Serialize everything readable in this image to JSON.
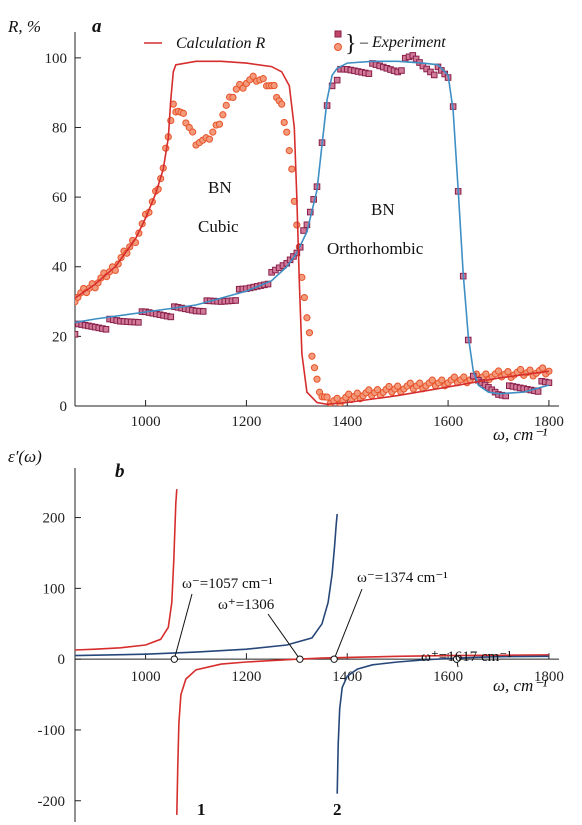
{
  "chart_data": [
    {
      "panel": "a",
      "type": "line",
      "ylabel": "R, %",
      "xlabel": "ω, cm⁻¹",
      "xlim": [
        860,
        1820
      ],
      "ylim": [
        0,
        108
      ],
      "xticks": [
        1000,
        1200,
        1400,
        1600,
        1800
      ],
      "yticks": [
        0,
        20,
        40,
        60,
        80,
        100
      ],
      "ytick_labels": [
        "0",
        "20",
        "40",
        "60",
        "80",
        "100"
      ],
      "legend": {
        "calc_label": "Calculation R",
        "exp_label": "– Experiment",
        "brace": "}",
        "placement": "top"
      },
      "annotations": {
        "cubic_1": "BN",
        "cubic_2": "Cubic",
        "ortho_1": "BN",
        "ortho_2": "Orthorhombic"
      },
      "series": [
        {
          "kind": "calculation-cubic",
          "color": "#d62d2d",
          "x": [
            860,
            900,
            940,
            980,
            1000,
            1020,
            1035,
            1045,
            1050,
            1055,
            1060,
            1100,
            1150,
            1200,
            1250,
            1270,
            1285,
            1295,
            1300,
            1305,
            1310,
            1320,
            1340,
            1360,
            1400,
            1500,
            1600,
            1700,
            1800
          ],
          "y": [
            31,
            35,
            40,
            48,
            54,
            61,
            68,
            77,
            88,
            96,
            98,
            99,
            99,
            98.5,
            97.5,
            96,
            92,
            80,
            60,
            35,
            15,
            4,
            1,
            0.5,
            1,
            3,
            5.5,
            8,
            10
          ]
        },
        {
          "kind": "experiment-cubic",
          "color": "#e8542a",
          "x": [
            860,
            900,
            940,
            980,
            1000,
            1020,
            1035,
            1045,
            1055,
            1065,
            1080,
            1100,
            1120,
            1140,
            1160,
            1180,
            1200,
            1220,
            1240,
            1255,
            1270,
            1280,
            1290,
            1300,
            1310,
            1320,
            1330,
            1340,
            1350,
            1360,
            1380,
            1420,
            1460,
            1500,
            1550,
            1600,
            1650,
            1700,
            1750,
            1800
          ],
          "y": [
            31,
            35,
            40,
            48,
            54,
            61,
            68,
            78,
            86,
            85,
            82,
            76,
            76,
            80,
            86,
            91,
            93,
            94,
            93,
            91,
            86,
            79,
            67,
            52,
            38,
            25,
            15,
            7,
            3,
            1.5,
            1.5,
            3,
            4,
            5,
            6,
            7,
            8,
            9,
            9.5,
            10
          ]
        },
        {
          "kind": "calculation-orthorhombic",
          "color": "#3d8fc4",
          "x": [
            860,
            900,
            1000,
            1100,
            1200,
            1250,
            1280,
            1300,
            1320,
            1340,
            1350,
            1360,
            1370,
            1380,
            1400,
            1450,
            1500,
            1550,
            1580,
            1600,
            1610,
            1620,
            1630,
            1640,
            1650,
            1660,
            1680,
            1700,
            1750,
            1800
          ],
          "y": [
            24,
            25,
            27,
            29,
            33,
            36,
            40,
            44,
            50,
            62,
            75,
            88,
            95,
            97,
            98.5,
            99,
            99,
            98.5,
            98,
            95,
            85,
            62,
            38,
            20,
            10,
            6,
            4,
            3.5,
            4,
            6
          ]
        },
        {
          "kind": "experiment-orthorhombic",
          "color": "#8a1f4a",
          "x": [
            860,
            900,
            950,
            1000,
            1050,
            1100,
            1150,
            1200,
            1250,
            1280,
            1300,
            1320,
            1340,
            1350,
            1360,
            1370,
            1380,
            1400,
            1450,
            1500,
            1530,
            1550,
            1580,
            1600,
            1610,
            1620,
            1630,
            1640,
            1650,
            1660,
            1680,
            1700,
            1750,
            1800
          ],
          "y": [
            22,
            23,
            24,
            26,
            27,
            28,
            30,
            33,
            37,
            41,
            45,
            51,
            63,
            76,
            87,
            93,
            95,
            96,
            97,
            97,
            100,
            98,
            96,
            94,
            86,
            62,
            38,
            20,
            10,
            6,
            5,
            4,
            5,
            6
          ]
        }
      ]
    },
    {
      "panel": "b",
      "type": "line",
      "ylabel": "ε′(ω)",
      "xlabel": "ω, cm⁻¹",
      "xlim": [
        860,
        1820
      ],
      "ylim": [
        -230,
        270
      ],
      "xticks": [
        1000,
        1200,
        1400,
        1600,
        1800
      ],
      "xtick_labels": [
        "1000",
        "1200",
        "1400",
        "1600",
        "1800"
      ],
      "yticks": [
        -200,
        -100,
        0,
        100,
        200
      ],
      "ytick_labels": [
        "-200",
        "-100",
        "0",
        "100",
        "200"
      ],
      "series": [
        {
          "name": "1",
          "color": "#d62d2d",
          "segments": [
            {
              "x": [
                860,
                900,
                950,
                1000,
                1030,
                1045,
                1052,
                1056,
                1058,
                1060,
                1062
              ],
              "y": [
                13,
                14,
                16,
                20,
                28,
                45,
                80,
                140,
                180,
                220,
                240
              ]
            },
            {
              "x": [
                1062,
                1064,
                1066,
                1070,
                1080,
                1100,
                1150,
                1200,
                1250,
                1300,
                1350,
                1400,
                1500,
                1600,
                1700,
                1800
              ],
              "y": [
                -220,
                -150,
                -90,
                -50,
                -28,
                -15,
                -7,
                -4,
                -2,
                0,
                1.5,
                2.5,
                4,
                5,
                5.5,
                6
              ]
            }
          ]
        },
        {
          "name": "2",
          "color": "#27477a",
          "segments": [
            {
              "x": [
                860,
                1000,
                1100,
                1200,
                1280,
                1330,
                1350,
                1362,
                1370,
                1375,
                1378,
                1380
              ],
              "y": [
                5,
                7,
                10,
                14,
                20,
                30,
                50,
                80,
                120,
                160,
                190,
                205
              ]
            },
            {
              "x": [
                1380,
                1382,
                1385,
                1390,
                1400,
                1420,
                1450,
                1500,
                1550,
                1600,
                1650,
                1700,
                1800
              ],
              "y": [
                -190,
                -120,
                -70,
                -40,
                -24,
                -14,
                -8,
                -4,
                -1,
                1,
                2.5,
                3.5,
                4
              ]
            }
          ]
        }
      ],
      "points": [
        {
          "label": "ω⁻=1057 cm⁻¹",
          "x": 1057,
          "y": 0
        },
        {
          "label": "ω⁺=1306",
          "x": 1306,
          "y": 0
        },
        {
          "label": "ω⁻=1374 cm⁻¹",
          "x": 1374,
          "y": 0
        },
        {
          "label": "ω⁺=1617 cm⁻¹",
          "x": 1617,
          "y": 0
        }
      ]
    }
  ]
}
